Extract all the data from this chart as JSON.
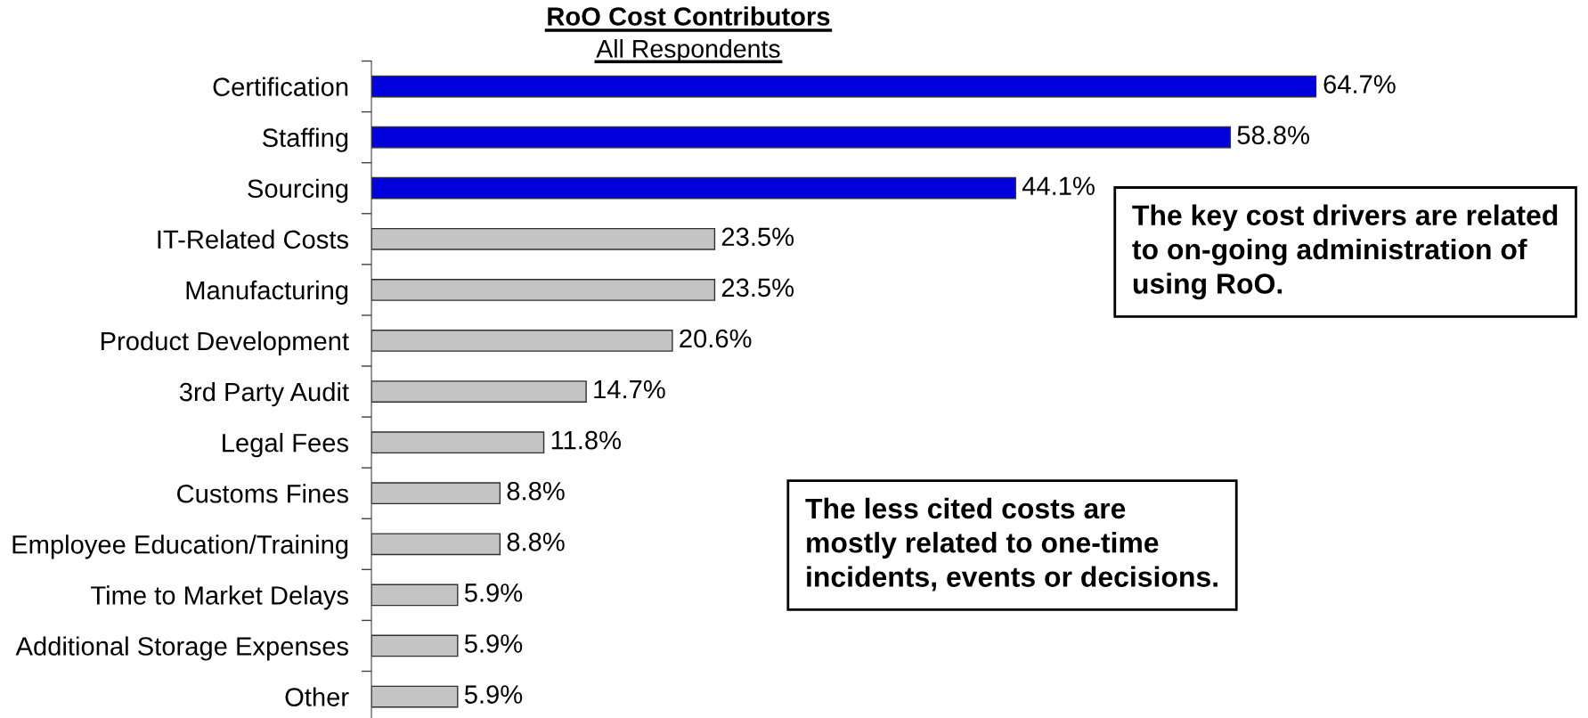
{
  "chart_data": {
    "type": "bar",
    "orientation": "horizontal",
    "title": "RoO Cost Contributors",
    "subtitle": "All Respondents",
    "categories": [
      "Certification",
      "Staffing",
      "Sourcing",
      "IT-Related Costs",
      "Manufacturing",
      "Product Development",
      "3rd Party Audit",
      "Legal Fees",
      "Customs Fines",
      "Employee Education/Training",
      "Time to Market Delays",
      "Additional Storage Expenses",
      "Other"
    ],
    "values": [
      64.7,
      58.8,
      44.1,
      23.5,
      23.5,
      20.6,
      14.7,
      11.8,
      8.8,
      8.8,
      5.9,
      5.9,
      5.9
    ],
    "colors": [
      "#0000dd",
      "#0000dd",
      "#0000dd",
      "#c4c4c4",
      "#c4c4c4",
      "#c4c4c4",
      "#c4c4c4",
      "#c4c4c4",
      "#c4c4c4",
      "#c4c4c4",
      "#c4c4c4",
      "#c4c4c4",
      "#c4c4c4"
    ],
    "value_labels": [
      "64.7%",
      "58.8%",
      "44.1%",
      "23.5%",
      "23.5%",
      "20.6%",
      "14.7%",
      "11.8%",
      "8.8%",
      "8.8%",
      "5.9%",
      "5.9%",
      "5.9%"
    ],
    "tick_labels": "y",
    "annotations": [
      "The key cost drivers are related\nto on-going administration of\nusing RoO.",
      "The less cited costs are\nmostly related to one-time\nincidents, events or decisions."
    ]
  }
}
